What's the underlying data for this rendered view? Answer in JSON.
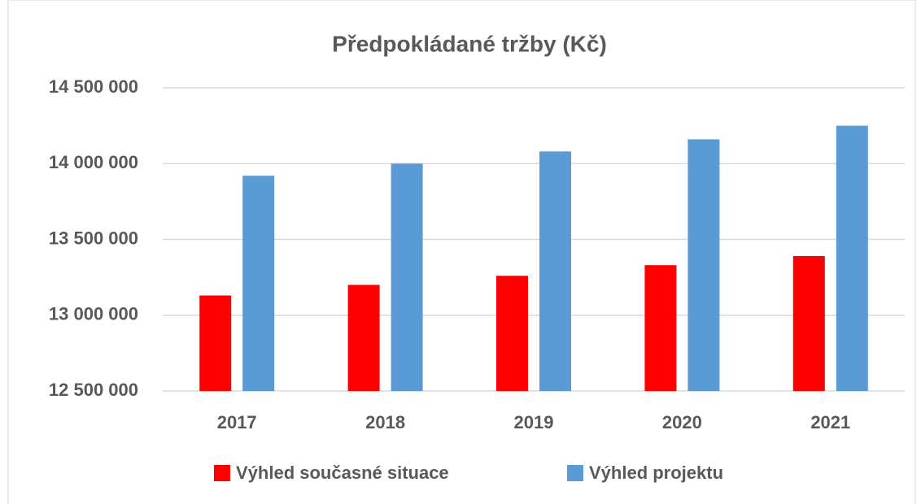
{
  "chart_data": {
    "type": "bar",
    "title": "Předpokládané tržby (Kč)",
    "categories": [
      "2017",
      "2018",
      "2019",
      "2020",
      "2021"
    ],
    "series": [
      {
        "name": "Výhled současné situace",
        "color": "#ff0000",
        "values": [
          13130000,
          13200000,
          13260000,
          13330000,
          13390000
        ]
      },
      {
        "name": "Výhled projektu",
        "color": "#5b9bd5",
        "values": [
          13920000,
          14000000,
          14080000,
          14160000,
          14250000
        ]
      }
    ],
    "ylim": [
      12500000,
      14500000
    ],
    "yticks": [
      {
        "value": 12500000,
        "label": "12 500 000"
      },
      {
        "value": 13000000,
        "label": "13 000 000"
      },
      {
        "value": 13500000,
        "label": "13 500 000"
      },
      {
        "value": 14000000,
        "label": "14 000 000"
      },
      {
        "value": 14500000,
        "label": "14 500 000"
      }
    ],
    "grid": true,
    "legend": "bottom"
  }
}
